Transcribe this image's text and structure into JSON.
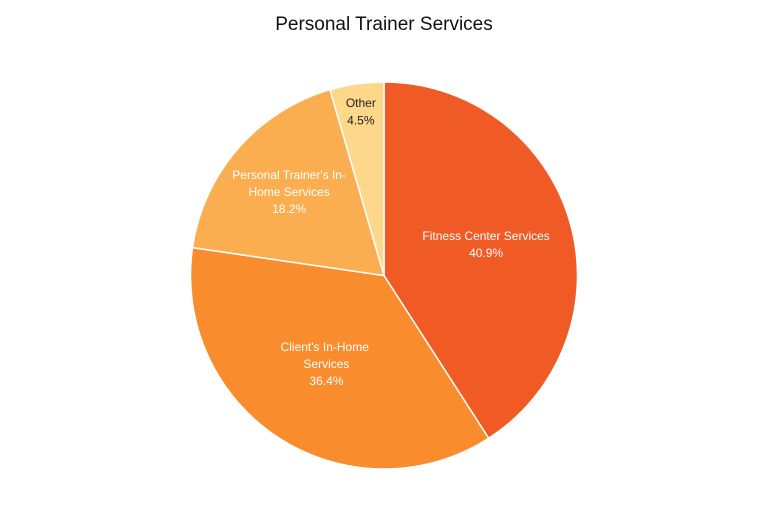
{
  "chart_data": {
    "type": "pie",
    "title": "Personal Trainer Services",
    "categories": [
      "Fitness Center Services",
      "Client's In-Home Services",
      "Personal Trainer's In-Home Services",
      "Other"
    ],
    "values": [
      40.9,
      36.4,
      18.2,
      4.5
    ],
    "value_labels": [
      "40.9%",
      "36.4%",
      "18.2%",
      "4.5%"
    ],
    "colors": [
      "#f05a24",
      "#f98c2d",
      "#fbae50",
      "#fdd78a"
    ]
  }
}
